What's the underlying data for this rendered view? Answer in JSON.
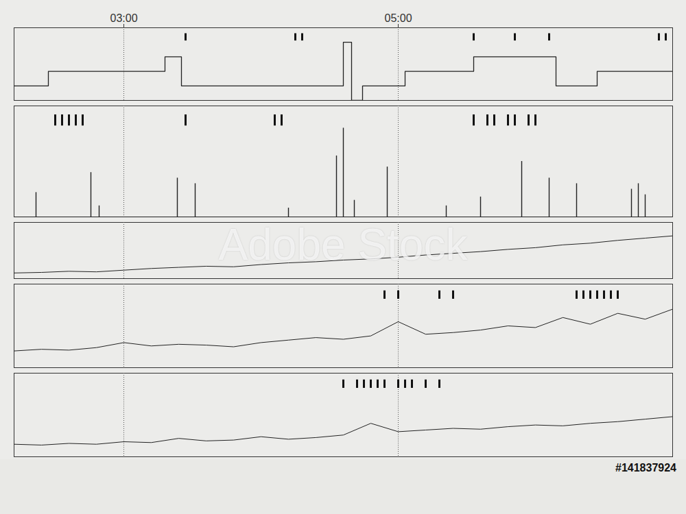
{
  "chart_data": {
    "type": "polygraph",
    "watermark": "Adobe Stock",
    "caption": "#141837924",
    "xlim": [
      2.2,
      7.0
    ],
    "xticks": [
      {
        "value": 3,
        "label": "03:00"
      },
      {
        "value": 5,
        "label": "05:00"
      }
    ],
    "grid": true,
    "tick_labels": "x",
    "panels": [
      {
        "type": "step",
        "color": "#222222",
        "ylim": [
          0,
          5
        ],
        "x": [
          2.2,
          2.45,
          3.3,
          3.42,
          4.6,
          4.66,
          4.74,
          5.05,
          5.55,
          6.15,
          6.45,
          7.0
        ],
        "values": [
          1,
          2,
          3,
          1,
          4,
          0,
          1,
          2,
          3,
          1,
          2,
          2
        ],
        "events": [
          3.45,
          4.25,
          4.3,
          5.55,
          5.85,
          6.1,
          6.9,
          6.95
        ]
      },
      {
        "type": "spike",
        "color": "#222222",
        "ylim": [
          0,
          100
        ],
        "x": [
          2.36,
          2.76,
          2.82,
          3.39,
          3.52,
          4.2,
          4.55,
          4.6,
          4.68,
          4.92,
          5.35,
          5.6,
          5.9,
          6.1,
          6.3,
          6.7,
          6.75,
          6.8
        ],
        "values": [
          22,
          40,
          10,
          35,
          30,
          8,
          55,
          80,
          15,
          45,
          10,
          18,
          50,
          35,
          30,
          25,
          30,
          20
        ],
        "events": [
          2.5,
          2.55,
          2.6,
          2.65,
          2.7,
          3.45,
          4.1,
          4.15,
          5.55,
          5.65,
          5.7,
          5.8,
          5.85,
          5.95,
          6.0
        ]
      },
      {
        "type": "line",
        "color": "#222222",
        "ylim": [
          0,
          100
        ],
        "x": [
          2.2,
          2.4,
          2.6,
          2.8,
          3.0,
          3.2,
          3.4,
          3.6,
          3.8,
          4.0,
          4.2,
          4.4,
          4.6,
          4.8,
          5.0,
          5.2,
          5.4,
          5.6,
          5.8,
          6.0,
          6.2,
          6.4,
          6.6,
          6.8,
          7.0
        ],
        "values": [
          10,
          11,
          13,
          12,
          15,
          18,
          20,
          22,
          21,
          25,
          28,
          30,
          33,
          35,
          38,
          42,
          45,
          48,
          52,
          55,
          60,
          63,
          68,
          72,
          76
        ],
        "events": []
      },
      {
        "type": "line",
        "color": "#222222",
        "ylim": [
          0,
          100
        ],
        "x": [
          2.2,
          2.4,
          2.6,
          2.8,
          3.0,
          3.2,
          3.4,
          3.6,
          3.8,
          4.0,
          4.2,
          4.4,
          4.6,
          4.8,
          5.0,
          5.2,
          5.4,
          5.6,
          5.8,
          6.0,
          6.2,
          6.4,
          6.6,
          6.8,
          7.0
        ],
        "values": [
          20,
          22,
          21,
          24,
          30,
          26,
          28,
          27,
          25,
          30,
          33,
          36,
          34,
          38,
          55,
          40,
          42,
          45,
          50,
          48,
          60,
          52,
          65,
          58,
          70
        ],
        "events": [
          4.9,
          5.0,
          5.3,
          5.4,
          6.3,
          6.35,
          6.4,
          6.45,
          6.5,
          6.55,
          6.6
        ]
      },
      {
        "type": "line",
        "color": "#222222",
        "ylim": [
          0,
          100
        ],
        "x": [
          2.2,
          2.4,
          2.6,
          2.8,
          3.0,
          3.2,
          3.4,
          3.6,
          3.8,
          4.0,
          4.2,
          4.4,
          4.6,
          4.8,
          5.0,
          5.2,
          5.4,
          5.6,
          5.8,
          6.0,
          6.2,
          6.4,
          6.6,
          6.8,
          7.0
        ],
        "values": [
          15,
          14,
          16,
          15,
          18,
          17,
          22,
          19,
          20,
          24,
          21,
          23,
          26,
          40,
          30,
          32,
          34,
          33,
          36,
          38,
          37,
          40,
          42,
          45,
          48
        ],
        "events": [
          4.6,
          4.7,
          4.75,
          4.8,
          4.85,
          4.9,
          5.0,
          5.05,
          5.1,
          5.2,
          5.3
        ]
      }
    ]
  }
}
